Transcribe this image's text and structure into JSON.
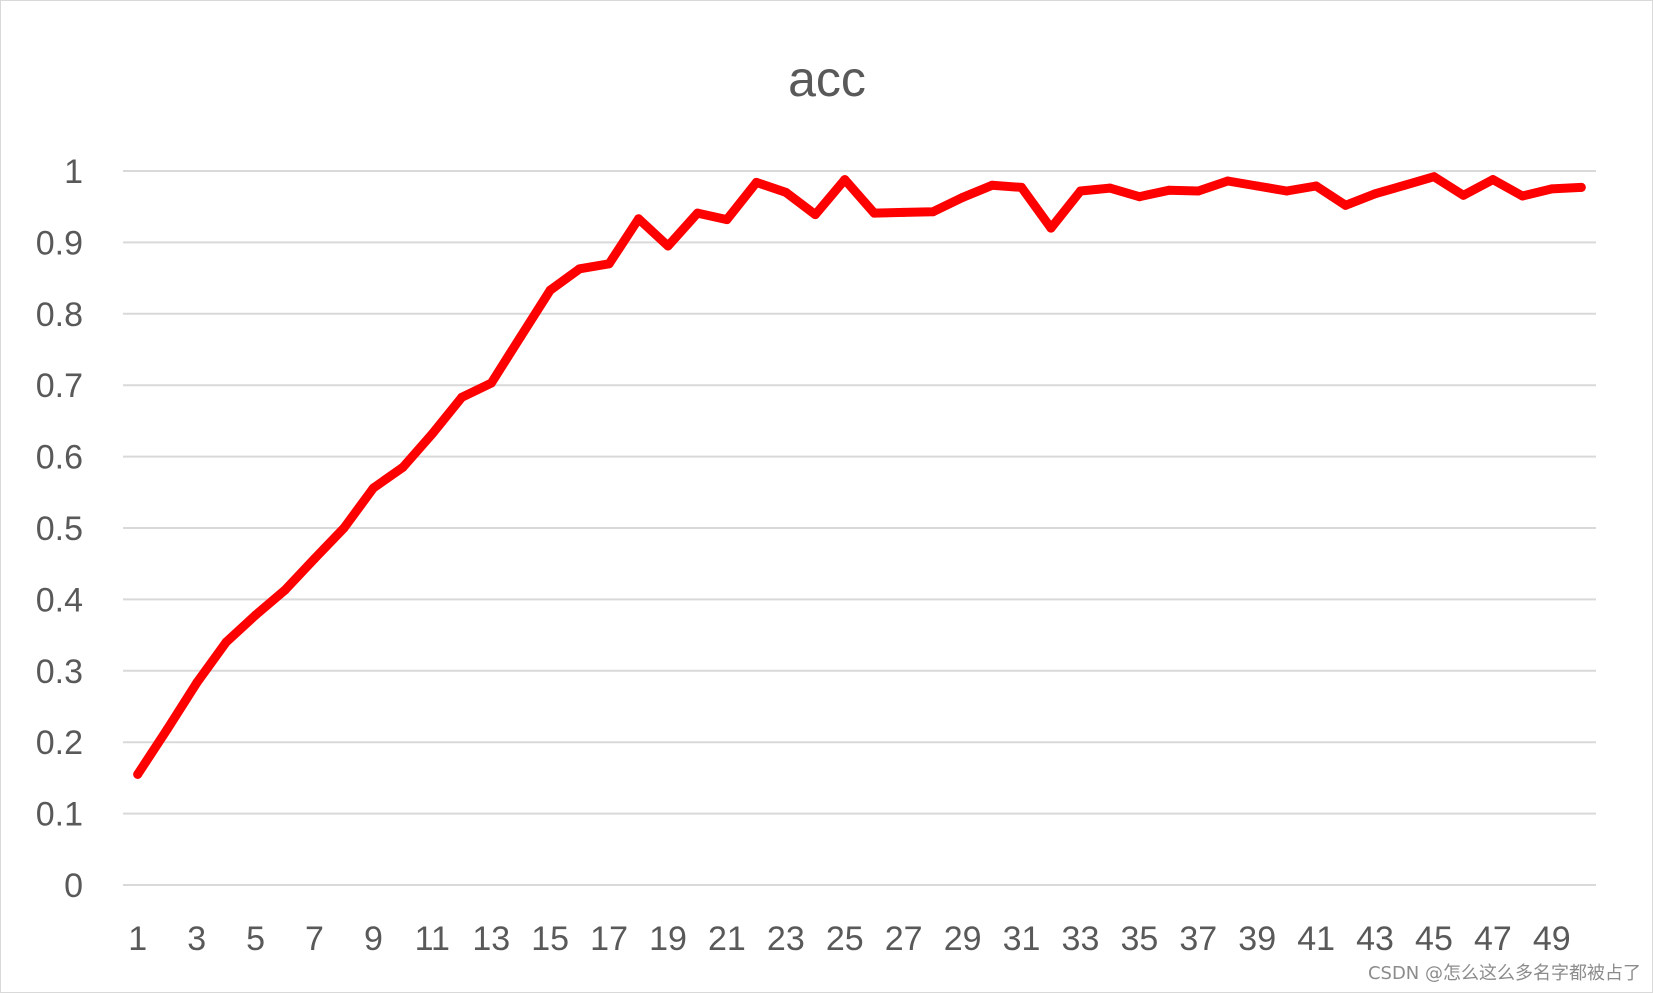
{
  "watermark": "CSDN @怎么这么多名字都被占了",
  "chart_data": {
    "type": "line",
    "title": "acc",
    "xlabel": "",
    "ylabel": "",
    "ylim": [
      0,
      1
    ],
    "yticks": [
      "0",
      "0.1",
      "0.2",
      "0.3",
      "0.4",
      "0.5",
      "0.6",
      "0.7",
      "0.8",
      "0.9",
      "1"
    ],
    "xticks": [
      "1",
      "3",
      "5",
      "7",
      "9",
      "11",
      "13",
      "15",
      "17",
      "19",
      "21",
      "23",
      "25",
      "27",
      "29",
      "31",
      "33",
      "35",
      "37",
      "39",
      "41",
      "43",
      "45",
      "47",
      "49"
    ],
    "grid": true,
    "legend": "none",
    "x": [
      1,
      2,
      3,
      4,
      5,
      6,
      7,
      8,
      9,
      10,
      11,
      12,
      13,
      14,
      15,
      16,
      17,
      18,
      19,
      20,
      21,
      22,
      23,
      24,
      25,
      26,
      27,
      28,
      29,
      30,
      31,
      32,
      33,
      34,
      35,
      36,
      37,
      38,
      39,
      40,
      41,
      42,
      43,
      44,
      45,
      46,
      47,
      48,
      49,
      50
    ],
    "series": [
      {
        "color": "#ff0000",
        "values": [
          0.155,
          0.218,
          0.283,
          0.34,
          0.378,
          0.413,
          0.457,
          0.5,
          0.556,
          0.585,
          0.632,
          0.683,
          0.703,
          0.768,
          0.833,
          0.863,
          0.87,
          0.933,
          0.895,
          0.941,
          0.932,
          0.984,
          0.97,
          0.939,
          0.988,
          0.941,
          0.942,
          0.943,
          0.963,
          0.98,
          0.977,
          0.92,
          0.972,
          0.976,
          0.964,
          0.973,
          0.972,
          0.986,
          0.979,
          0.972,
          0.979,
          0.952,
          0.968,
          0.98,
          0.992,
          0.966,
          0.988,
          0.965,
          0.975,
          0.977
        ]
      }
    ]
  }
}
